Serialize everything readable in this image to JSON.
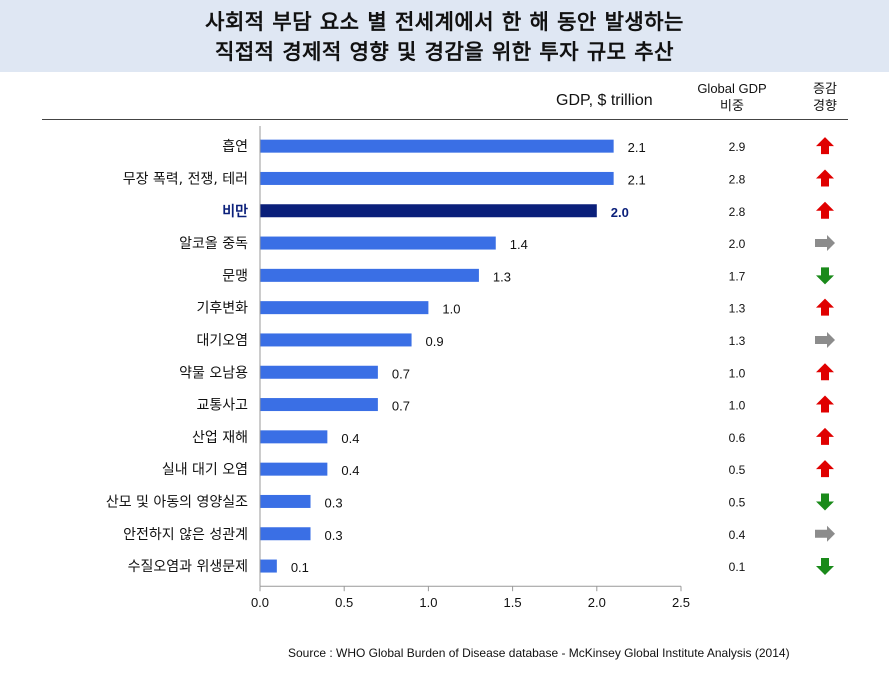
{
  "title": {
    "line1": "사회적 부담 요소 별 전세계에서 한 해 동안 발생하는",
    "line2": "직접적 경제적 영향 및 경감을 위한 투자 규모 추산"
  },
  "headers": {
    "gdp_unit": "GDP, $ trillion",
    "gdp_share_line1": "Global GDP",
    "gdp_share_line2": "비중",
    "trend_line1": "증감",
    "trend_line2": "경향"
  },
  "source": "Source : WHO Global Burden of Disease database - McKinsey Global Institute Analysis (2014)",
  "colors": {
    "bar": "#3a6fe5",
    "highlight_bar": "#0a1f7a",
    "highlight_text": "#0a1f7a",
    "up": "#e00000",
    "right": "#8c8c8c",
    "down": "#1a8a1a"
  },
  "chart_data": {
    "type": "bar",
    "orientation": "horizontal",
    "categories": [
      "흡연",
      "무장 폭력, 전쟁, 테러",
      "비만",
      "알코올 중독",
      "문맹",
      "기후변화",
      "대기오염",
      "약물 오남용",
      "교통사고",
      "산업 재해",
      "실내 대기 오염",
      "산모 및 아동의 영양실조",
      "안전하지 않은 성관계",
      "수질오염과 위생문제"
    ],
    "values": [
      2.1,
      2.1,
      2.0,
      1.4,
      1.3,
      1.0,
      0.9,
      0.7,
      0.7,
      0.4,
      0.4,
      0.3,
      0.3,
      0.1
    ],
    "value_labels": [
      "2.1",
      "2.1",
      "2.0",
      "1.4",
      "1.3",
      "1.0",
      "0.9",
      "0.7",
      "0.7",
      "0.4",
      "0.4",
      "0.3",
      "0.3",
      "0.1"
    ],
    "highlight": "비만",
    "gdp_share": [
      "2.9",
      "2.8",
      "2.8",
      "2.0",
      "1.7",
      "1.3",
      "1.3",
      "1.0",
      "1.0",
      "0.6",
      "0.5",
      "0.5",
      "0.4",
      "0.1"
    ],
    "trend": [
      "up",
      "up",
      "up",
      "right",
      "down",
      "up",
      "right",
      "up",
      "up",
      "up",
      "up",
      "down",
      "right",
      "down"
    ],
    "xlim": [
      0,
      2.5
    ],
    "xticks": [
      "0.0",
      "0.5",
      "1.0",
      "1.5",
      "2.0",
      "2.5"
    ],
    "xlabel": "GDP, $ trillion",
    "grid": false
  }
}
